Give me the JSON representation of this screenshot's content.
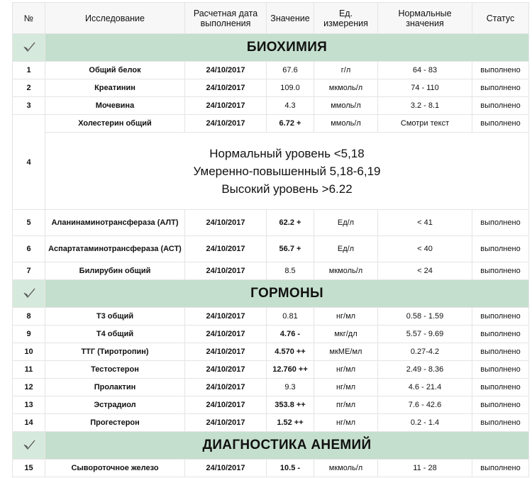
{
  "header": [
    "№",
    "Исследование",
    "Расчетная дата выполнения",
    "Значение",
    "Ед. измерения",
    "Нормальные значения",
    "Статус"
  ],
  "sections": [
    {
      "title": "БИОХИМИЯ",
      "rows": [
        {
          "cells": [
            "1",
            "Общий белок",
            "24/10/2017",
            "67.6",
            "г/л",
            "64 - 83",
            "выполнено"
          ]
        },
        {
          "cells": [
            "2",
            "Креатинин",
            "24/10/2017",
            "109.0",
            "мкмоль/л",
            "74 - 110",
            "выполнено"
          ]
        },
        {
          "cells": [
            "3",
            "Мочевина",
            "24/10/2017",
            "4.3",
            "ммоль/л",
            "3.2 - 8.1",
            "выполнено"
          ]
        },
        {
          "cells": [
            "4",
            "Холестерин общий",
            "24/10/2017",
            "6.72 +",
            "ммоль/л",
            "Смотри текст",
            "выполнено"
          ],
          "note": [
            "Нормальный уровень <5,18",
            "Умеренно-повышенный 5,18-6,19",
            "Высокий уровень >6.22"
          ]
        },
        {
          "cells": [
            "5",
            "Аланинаминотрансфераза (АЛТ)",
            "24/10/2017",
            "62.2 +",
            "Ед/л",
            "< 41",
            "выполнено"
          ]
        },
        {
          "cells": [
            "6",
            "Аспартатаминотрансфераза (АСТ)",
            "24/10/2017",
            "56.7 +",
            "Ед/л",
            "< 40",
            "выполнено"
          ]
        },
        {
          "cells": [
            "7",
            "Билирубин общий",
            "24/10/2017",
            "8.5",
            "мкмоль/л",
            "< 24",
            "выполнено"
          ]
        }
      ]
    },
    {
      "title": "ГОРМОНЫ",
      "rows": [
        {
          "cells": [
            "8",
            "Т3 общий",
            "24/10/2017",
            "0.81",
            "нг/мл",
            "0.58 - 1.59",
            "выполнено"
          ]
        },
        {
          "cells": [
            "9",
            "Т4 общий",
            "24/10/2017",
            "4.76 -",
            "мкг/дл",
            "5.57 - 9.69",
            "выполнено"
          ]
        },
        {
          "cells": [
            "10",
            "ТТГ (Тиротропин)",
            "24/10/2017",
            "4.570 ++",
            "мкМЕ/мл",
            "0.27-4.2",
            "выполнено"
          ]
        },
        {
          "cells": [
            "11",
            "Тестостерон",
            "24/10/2017",
            "12.760 ++",
            "нг/мл",
            "2.49 - 8.36",
            "выполнено"
          ]
        },
        {
          "cells": [
            "12",
            "Пролактин",
            "24/10/2017",
            "9.3",
            "нг/мл",
            "4.6 - 21.4",
            "выполнено"
          ]
        },
        {
          "cells": [
            "13",
            "Эстрадиол",
            "24/10/2017",
            "353.8 ++",
            "пг/мл",
            "7.6 - 42.6",
            "выполнено"
          ]
        },
        {
          "cells": [
            "14",
            "Прогестерон",
            "24/10/2017",
            "1.52 ++",
            "нг/мл",
            "0.2 - 1.4",
            "выполнено"
          ]
        }
      ]
    },
    {
      "title": "ДИАГНОСТИКА АНЕМИЙ",
      "rows": [
        {
          "cells": [
            "15",
            "Сывороточное железо",
            "24/10/2017",
            "10.5 -",
            "мкмоль/л",
            "11 - 28",
            "выполнено"
          ]
        }
      ]
    }
  ]
}
